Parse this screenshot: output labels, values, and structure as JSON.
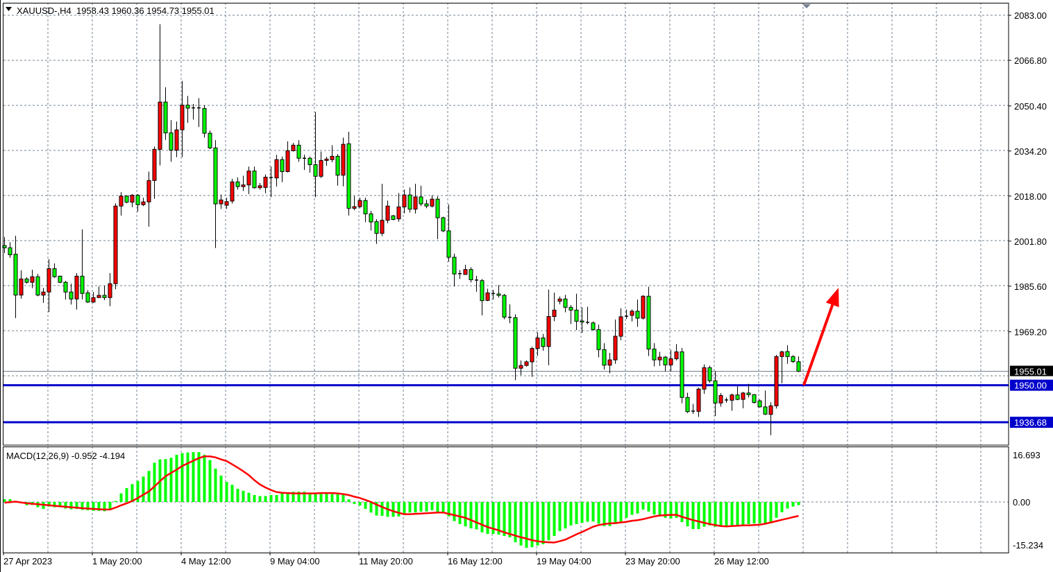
{
  "header": {
    "symbol_line": "XAUUSD-,H4  1958.43 1960.36 1954.73 1955.01",
    "menu_icon": "triangle-down-icon"
  },
  "colors": {
    "bull_body": "#ff0000",
    "bear_body": "#00ff00",
    "outline": "#000000",
    "grid": "#708090",
    "level_line": "#0000cc",
    "macd_hist": "#00ff00",
    "macd_signal": "#ff0000",
    "annotation_arrow": "#ff0000",
    "price_tag": "#000000"
  },
  "price_axis": {
    "labels": [
      "2083.00",
      "2066.80",
      "2050.40",
      "2034.20",
      "2018.00",
      "2001.80",
      "1985.60",
      "1969.20"
    ],
    "current_price": "1955.01",
    "levels": [
      {
        "price": "1950.00"
      },
      {
        "price": "1936.68"
      }
    ]
  },
  "time_axis": {
    "labels": [
      "27 Apr 2023",
      "1 May 20:00",
      "4 May 12:00",
      "9 May 04:00",
      "11 May 20:00",
      "16 May 12:00",
      "19 May 04:00",
      "23 May 20:00",
      "26 May 12:00"
    ]
  },
  "macd": {
    "title": "MACD(12,26,9) -0.952 -4.194",
    "axis_labels": [
      "16.693",
      "0.00",
      "-15.234"
    ]
  },
  "chart_data": {
    "type": "candlestick",
    "symbol": "XAUUSD-",
    "timeframe": "H4",
    "ylim": [
      1930,
      2085
    ],
    "grid": true,
    "ohlc_fields": [
      "open",
      "high",
      "low",
      "close"
    ],
    "bars": [
      [
        2000.2,
        2003.3,
        1997.5,
        1999.4
      ],
      [
        1999.4,
        2001.4,
        1995.8,
        1996.9
      ],
      [
        1997.1,
        2003.7,
        1974.1,
        1982.4
      ],
      [
        1982.4,
        1991.3,
        1981.1,
        1988.2
      ],
      [
        1988.2,
        1988.8,
        1986.5,
        1987.0
      ],
      [
        1987.0,
        1991.5,
        1984.9,
        1989.0
      ],
      [
        1989.0,
        1990.0,
        1982.0,
        1982.4
      ],
      [
        1982.4,
        1985.0,
        1979.6,
        1983.5
      ],
      [
        1983.5,
        1995.3,
        1976.3,
        1991.9
      ],
      [
        1991.9,
        1993.8,
        1988.6,
        1989.0
      ],
      [
        1989.2,
        1989.4,
        1986.7,
        1987.0
      ],
      [
        1987.0,
        1987.5,
        1980.8,
        1983.5
      ],
      [
        1983.5,
        1986.5,
        1979.0,
        1981.0
      ],
      [
        1981.0,
        1990.3,
        1977.2,
        1989.2
      ],
      [
        1989.2,
        2006.0,
        1980.8,
        1983.0
      ],
      [
        1983.2,
        1984.2,
        1979.6,
        1979.9
      ],
      [
        1979.9,
        1983.5,
        1979.6,
        1981.5
      ],
      [
        1981.5,
        1985.5,
        1981.4,
        1982.3
      ],
      [
        1982.3,
        1985.8,
        1980.6,
        1981.5
      ],
      [
        1981.5,
        1990.3,
        1978.4,
        1986.5
      ],
      [
        1986.5,
        2015.4,
        1984.5,
        2014.4
      ],
      [
        2014.4,
        2019.4,
        2011.0,
        2018.0
      ],
      [
        2018.0,
        2018.3,
        2015.4,
        2015.8
      ],
      [
        2015.8,
        2018.7,
        2014.0,
        2018.3
      ],
      [
        2018.3,
        2018.7,
        2012.4,
        2014.9
      ],
      [
        2014.9,
        2017.4,
        2014.4,
        2015.9
      ],
      [
        2015.9,
        2026.8,
        2007.0,
        2023.6
      ],
      [
        2023.6,
        2035.8,
        2017.0,
        2034.8
      ],
      [
        2034.8,
        2079.8,
        2029.0,
        2051.8
      ],
      [
        2051.8,
        2057.1,
        2038.2,
        2040.7
      ],
      [
        2040.7,
        2045.3,
        2030.3,
        2034.5
      ],
      [
        2034.5,
        2044.8,
        2032.0,
        2041.8
      ],
      [
        2041.8,
        2059.4,
        2032.0,
        2050.7
      ],
      [
        2050.7,
        2054.0,
        2044.3,
        2049.6
      ],
      [
        2049.6,
        2051.1,
        2045.5,
        2049.7
      ],
      [
        2049.7,
        2053.2,
        2042.8,
        2049.6
      ],
      [
        2049.5,
        2050.7,
        2039.0,
        2040.6
      ],
      [
        2040.6,
        2041.6,
        2034.9,
        2035.3
      ],
      [
        2035.3,
        2038.1,
        1999.3,
        2015.2
      ],
      [
        2015.2,
        2018.5,
        2013.4,
        2016.6
      ],
      [
        2014.7,
        2017.4,
        2013.4,
        2016.0
      ],
      [
        2016.2,
        2024.2,
        2015.3,
        2023.1
      ],
      [
        2023.1,
        2024.7,
        2020.3,
        2021.4
      ],
      [
        2021.4,
        2025.3,
        2019.8,
        2022.0
      ],
      [
        2022.0,
        2028.6,
        2018.7,
        2027.0
      ],
      [
        2027.0,
        2028.6,
        2020.7,
        2021.0
      ],
      [
        2021.0,
        2022.7,
        2020.3,
        2021.7
      ],
      [
        2021.1,
        2025.8,
        2019.0,
        2024.8
      ],
      [
        2024.7,
        2028.6,
        2017.6,
        2024.6
      ],
      [
        2024.5,
        2032.8,
        2021.4,
        2031.1
      ],
      [
        2031.1,
        2032.2,
        2023.0,
        2026.8
      ],
      [
        2026.8,
        2037.7,
        2026.5,
        2034.3
      ],
      [
        2034.3,
        2037.1,
        2034.0,
        2036.3
      ],
      [
        2036.3,
        2038.1,
        2030.3,
        2031.6
      ],
      [
        2031.6,
        2032.9,
        2027.4,
        2031.5
      ],
      [
        2031.6,
        2032.2,
        2026.4,
        2029.3
      ],
      [
        2029.3,
        2048.2,
        2017.6,
        2025.1
      ],
      [
        2025.1,
        2034.0,
        2024.5,
        2030.8
      ],
      [
        2030.8,
        2032.1,
        2028.9,
        2031.3
      ],
      [
        2031.1,
        2036.3,
        2030.2,
        2032.3
      ],
      [
        2032.3,
        2033.1,
        2021.7,
        2025.5
      ],
      [
        2025.5,
        2039.0,
        2021.5,
        2036.6
      ],
      [
        2036.8,
        2041.1,
        2011.0,
        2013.6
      ],
      [
        2013.6,
        2018.0,
        2012.9,
        2014.2
      ],
      [
        2014.2,
        2017.4,
        2013.6,
        2016.4
      ],
      [
        2016.4,
        2017.4,
        2008.6,
        2011.6
      ],
      [
        2011.6,
        2012.7,
        2005.6,
        2008.7
      ],
      [
        2008.8,
        2009.7,
        2000.8,
        2004.6
      ],
      [
        2004.6,
        2022.4,
        2003.6,
        2009.3
      ],
      [
        2009.3,
        2016.4,
        2008.2,
        2014.4
      ],
      [
        2010.9,
        2011.2,
        2009.3,
        2009.6
      ],
      [
        2009.8,
        2019.1,
        2008.8,
        2014.1
      ],
      [
        2014.1,
        2020.3,
        2011.8,
        2018.4
      ],
      [
        2018.4,
        2021.1,
        2012.1,
        2013.3
      ],
      [
        2013.3,
        2022.4,
        2011.7,
        2017.7
      ],
      [
        2017.7,
        2021.7,
        2014.4,
        2015.2
      ],
      [
        2015.2,
        2016.7,
        2013.6,
        2014.4
      ],
      [
        2014.4,
        2018.3,
        2013.9,
        2016.9
      ],
      [
        2016.9,
        2017.9,
        2002.5,
        2010.2
      ],
      [
        2010.2,
        2010.6,
        2005.0,
        2005.5
      ],
      [
        2005.5,
        2015.0,
        1994.4,
        1996.0
      ],
      [
        1996.0,
        1997.3,
        1985.5,
        1990.0
      ],
      [
        1990.1,
        1991.4,
        1988.2,
        1989.9
      ],
      [
        1989.8,
        1993.3,
        1989.8,
        1991.6
      ],
      [
        1991.6,
        1992.4,
        1986.9,
        1987.9
      ],
      [
        1987.8,
        1989.3,
        1983.6,
        1987.6
      ],
      [
        1987.6,
        1988.2,
        1975.1,
        1980.4
      ],
      [
        1980.5,
        1984.7,
        1980.2,
        1983.2
      ],
      [
        1983.0,
        1984.3,
        1980.8,
        1982.9
      ],
      [
        1982.8,
        1986.0,
        1981.5,
        1982.3
      ],
      [
        1982.3,
        1982.8,
        1973.7,
        1974.5
      ],
      [
        1974.4,
        1979.1,
        1972.3,
        1974.3
      ],
      [
        1974.3,
        1975.5,
        1951.8,
        1956.1
      ],
      [
        1956.1,
        1958.9,
        1953.6,
        1957.1
      ],
      [
        1957.1,
        1958.9,
        1956.7,
        1958.4
      ],
      [
        1958.4,
        1963.8,
        1953.0,
        1963.2
      ],
      [
        1963.2,
        1969.0,
        1960.6,
        1967.0
      ],
      [
        1967.0,
        1968.4,
        1962.4,
        1963.9
      ],
      [
        1963.9,
        1984.4,
        1957.2,
        1974.7
      ],
      [
        1974.7,
        1983.3,
        1973.0,
        1977.0
      ],
      [
        1980.2,
        1981.9,
        1979.1,
        1981.0
      ],
      [
        1981.0,
        1982.5,
        1976.2,
        1978.0
      ],
      [
        1978.0,
        1978.8,
        1972.0,
        1977.0
      ],
      [
        1977.0,
        1982.9,
        1969.8,
        1973.0
      ],
      [
        1973.1,
        1978.0,
        1968.8,
        1972.7
      ],
      [
        1972.6,
        1978.2,
        1971.9,
        1972.4
      ],
      [
        1972.4,
        1972.9,
        1969.6,
        1970.0
      ],
      [
        1970.0,
        1971.8,
        1960.0,
        1962.8
      ],
      [
        1962.8,
        1965.1,
        1955.6,
        1957.2
      ],
      [
        1957.2,
        1961.6,
        1954.3,
        1959.1
      ],
      [
        1959.1,
        1973.6,
        1957.7,
        1967.6
      ],
      [
        1967.6,
        1977.7,
        1966.2,
        1974.6
      ],
      [
        1974.7,
        1977.2,
        1973.8,
        1974.8
      ],
      [
        1975.1,
        1977.3,
        1972.9,
        1976.6
      ],
      [
        1976.6,
        1980.8,
        1971.0,
        1974.1
      ],
      [
        1974.1,
        1982.4,
        1973.6,
        1982.0
      ],
      [
        1982.0,
        1985.4,
        1960.5,
        1963.0
      ],
      [
        1963.0,
        1965.1,
        1956.8,
        1959.1
      ],
      [
        1959.1,
        1962.0,
        1956.9,
        1960.1
      ],
      [
        1960.1,
        1960.5,
        1954.9,
        1957.3
      ],
      [
        1957.3,
        1962.7,
        1954.9,
        1959.5
      ],
      [
        1959.5,
        1964.8,
        1958.9,
        1962.0
      ],
      [
        1962.0,
        1963.4,
        1943.5,
        1945.6
      ],
      [
        1945.6,
        1947.3,
        1940.0,
        1940.5
      ],
      [
        1940.7,
        1943.3,
        1939.7,
        1940.6
      ],
      [
        1940.6,
        1949.1,
        1938.6,
        1948.6
      ],
      [
        1948.6,
        1957.5,
        1946.9,
        1956.3
      ],
      [
        1956.3,
        1957.0,
        1950.9,
        1951.6
      ],
      [
        1951.6,
        1955.0,
        1938.9,
        1943.6
      ],
      [
        1943.6,
        1947.2,
        1942.3,
        1946.3
      ],
      [
        1944.7,
        1945.6,
        1943.7,
        1944.6
      ],
      [
        1944.6,
        1947.0,
        1940.8,
        1946.5
      ],
      [
        1946.5,
        1949.7,
        1944.6,
        1944.9
      ],
      [
        1944.9,
        1947.6,
        1941.7,
        1947.2
      ],
      [
        1947.2,
        1950.5,
        1945.6,
        1946.6
      ],
      [
        1946.6,
        1946.8,
        1943.4,
        1943.8
      ],
      [
        1944.4,
        1944.9,
        1942.0,
        1942.2
      ],
      [
        1942.2,
        1948.1,
        1939.3,
        1939.6
      ],
      [
        1939.5,
        1943.9,
        1932.0,
        1942.6
      ],
      [
        1942.6,
        1960.9,
        1941.6,
        1960.3
      ],
      [
        1960.3,
        1962.4,
        1950.7,
        1962.0
      ],
      [
        1962.1,
        1964.4,
        1957.7,
        1960.3
      ],
      [
        1960.3,
        1960.8,
        1958.0,
        1958.5
      ],
      [
        1958.43,
        1960.36,
        1954.73,
        1955.01
      ]
    ],
    "macd_ylim": [
      -15.234,
      16.693
    ],
    "macd_main": [
      0.84,
      0.84,
      -0.2,
      -0.4,
      -1.0,
      -0.9,
      -1.6,
      -2.1,
      -1.4,
      -1.6,
      -1.6,
      -2.0,
      -2.2,
      -2.1,
      -2.4,
      -2.5,
      -2.7,
      -2.7,
      -2.8,
      -2.0,
      0.3,
      2.6,
      4.2,
      5.4,
      6.4,
      7.7,
      9.4,
      11.9,
      12.9,
      13.0,
      13.4,
      14.3,
      14.8,
      15.0,
      15.1,
      15.1,
      14.3,
      12.7,
      10.1,
      8.0,
      6.1,
      5.2,
      4.0,
      3.4,
      2.8,
      2.1,
      1.8,
      1.8,
      2.1,
      2.1,
      2.6,
      2.9,
      3.1,
      3.1,
      3.1,
      2.6,
      2.4,
      2.4,
      2.6,
      2.4,
      2.7,
      2.1,
      0.8,
      -0.6,
      -1.1,
      -2.1,
      -3.2,
      -4.1,
      -4.2,
      -4.5,
      -4.5,
      -4.4,
      -3.4,
      -3.2,
      -3.2,
      -2.9,
      -2.9,
      -2.5,
      -3.0,
      -3.2,
      -4.4,
      -5.8,
      -6.7,
      -7.4,
      -8.0,
      -8.3,
      -9.2,
      -9.7,
      -9.7,
      -9.9,
      -10.3,
      -10.7,
      -12.2,
      -13.2,
      -13.9,
      -13.7,
      -13.2,
      -12.8,
      -11.6,
      -10.3,
      -8.8,
      -8.0,
      -7.1,
      -6.7,
      -6.3,
      -6.0,
      -5.9,
      -6.6,
      -7.3,
      -7.3,
      -6.7,
      -5.9,
      -4.8,
      -3.9,
      -3.5,
      -2.3,
      -2.9,
      -3.8,
      -4.4,
      -4.8,
      -5.0,
      -4.8,
      -6.1,
      -7.4,
      -8.2,
      -8.2,
      -7.5,
      -7.1,
      -7.5,
      -7.4,
      -7.4,
      -7.4,
      -7.1,
      -7.1,
      -6.7,
      -6.5,
      -6.5,
      -6.5,
      -6.5,
      -4.8,
      -3.1,
      -2.0,
      -1.4,
      -0.952
    ],
    "macd_signal": [
      -0.2,
      -0.05,
      0.1,
      -0.15,
      -0.4,
      -0.55,
      -0.7,
      -0.85,
      -1.0,
      -1.15,
      -1.3,
      -1.45,
      -1.6,
      -1.75,
      -1.9,
      -2.0,
      -2.1,
      -2.2,
      -2.3,
      -2.3,
      -1.7,
      -1.0,
      -0.4,
      0.3,
      1.2,
      2.2,
      3.2,
      4.7,
      6.3,
      7.8,
      8.8,
      9.8,
      10.9,
      11.7,
      12.5,
      13.3,
      13.8,
      13.8,
      13.5,
      12.9,
      12.4,
      11.4,
      10.4,
      9.3,
      8.1,
      6.6,
      5.3,
      4.4,
      3.6,
      3.0,
      2.8,
      2.7,
      2.6,
      2.6,
      2.6,
      2.6,
      2.6,
      2.7,
      2.7,
      2.7,
      2.6,
      2.4,
      2.1,
      1.6,
      1.2,
      0.6,
      0.0,
      -0.8,
      -1.5,
      -2.2,
      -2.8,
      -3.3,
      -3.7,
      -3.7,
      -3.6,
      -3.5,
      -3.4,
      -3.3,
      -3.2,
      -3.2,
      -3.6,
      -4.0,
      -4.4,
      -4.8,
      -5.5,
      -6.2,
      -6.9,
      -7.6,
      -8.1,
      -8.6,
      -9.2,
      -9.7,
      -10.2,
      -10.7,
      -11.1,
      -11.6,
      -11.9,
      -12.1,
      -12.2,
      -12.3,
      -11.9,
      -11.4,
      -10.6,
      -9.8,
      -9.1,
      -8.3,
      -7.5,
      -7.0,
      -6.7,
      -6.5,
      -6.4,
      -6.2,
      -6.0,
      -5.7,
      -5.5,
      -5.2,
      -4.8,
      -4.4,
      -4.1,
      -4.0,
      -3.9,
      -3.9,
      -4.5,
      -5.0,
      -5.5,
      -5.9,
      -6.3,
      -6.7,
      -7.0,
      -7.3,
      -7.4,
      -7.3,
      -7.2,
      -7.1,
      -7.1,
      -7.0,
      -6.9,
      -6.6,
      -6.2,
      -5.8,
      -5.4,
      -5.0,
      -4.6,
      -4.194
    ],
    "annotation_arrow": {
      "from": {
        "bar": 144,
        "price": 1950.0
      },
      "to": {
        "bar": 150.25,
        "price": 1985.0
      }
    }
  }
}
